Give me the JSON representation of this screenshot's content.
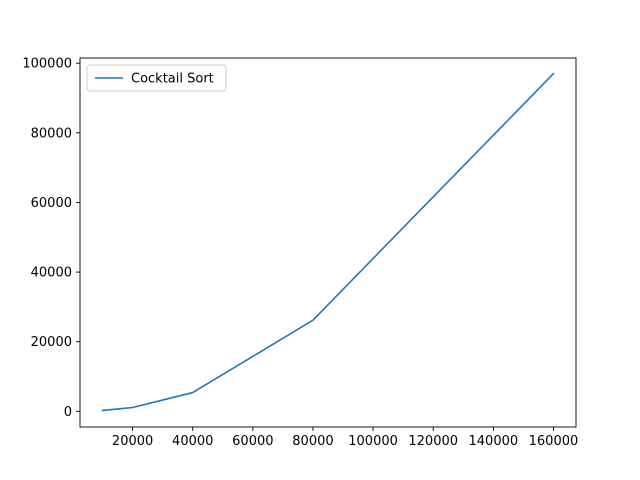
{
  "chart_data": {
    "type": "line",
    "title": "",
    "xlabel": "",
    "ylabel": "",
    "xlim": [
      2500,
      167500
    ],
    "ylim": [
      -4500,
      101500
    ],
    "xticks": [
      20000,
      40000,
      60000,
      80000,
      100000,
      120000,
      140000,
      160000
    ],
    "xtick_labels": [
      "20000",
      "40000",
      "60000",
      "80000",
      "100000",
      "120000",
      "140000",
      "160000"
    ],
    "yticks": [
      0,
      20000,
      40000,
      60000,
      80000,
      100000
    ],
    "ytick_labels": [
      "0",
      "20000",
      "40000",
      "60000",
      "80000",
      "100000"
    ],
    "grid": false,
    "legend": {
      "position": "upper-left"
    },
    "series": [
      {
        "name": "Cocktail Sort",
        "color": "#1f77b4",
        "x": [
          10000,
          20000,
          40000,
          80000,
          160000
        ],
        "y": [
          250,
          1100,
          5400,
          26200,
          97000
        ]
      }
    ]
  }
}
